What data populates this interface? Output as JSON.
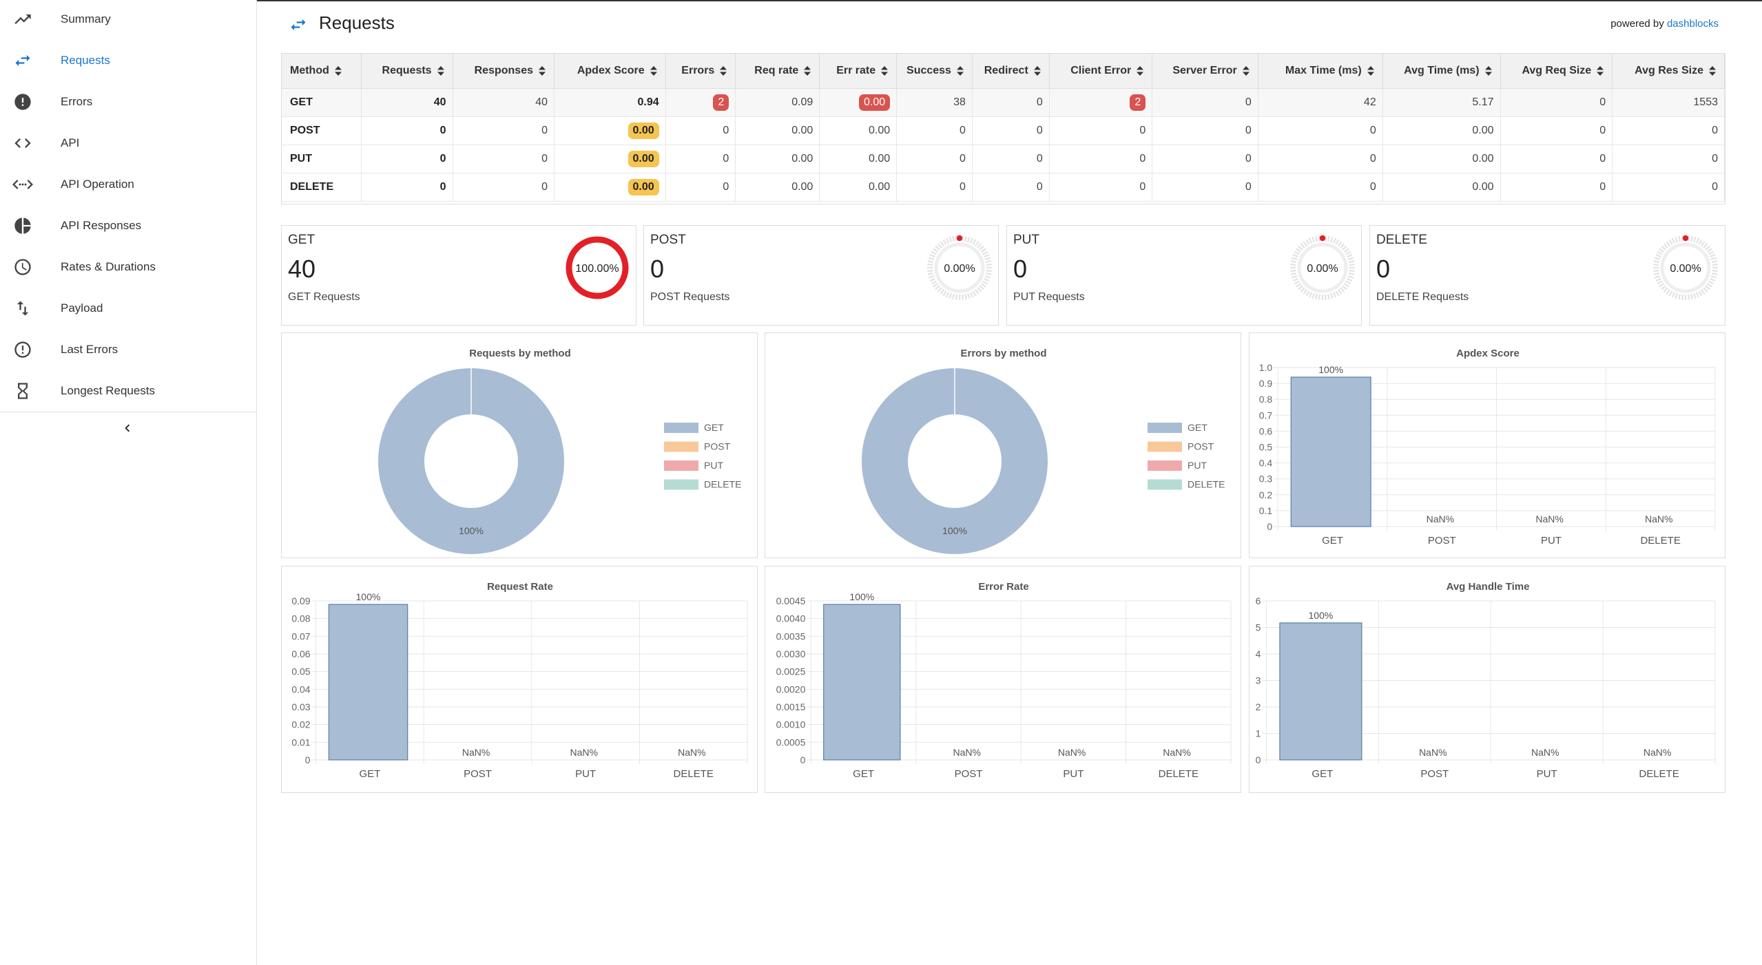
{
  "sidebar": {
    "items": [
      {
        "label": "Summary",
        "icon": "trending-up-icon"
      },
      {
        "label": "Requests",
        "icon": "swap-arrows-icon",
        "active": true
      },
      {
        "label": "Errors",
        "icon": "error-filled-icon"
      },
      {
        "label": "API",
        "icon": "code-icon"
      },
      {
        "label": "API Operation",
        "icon": "code-dots-icon"
      },
      {
        "label": "API Responses",
        "icon": "pie-chart-icon"
      },
      {
        "label": "Rates & Durations",
        "icon": "clock-icon"
      },
      {
        "label": "Payload",
        "icon": "swap-vertical-icon"
      },
      {
        "label": "Last Errors",
        "icon": "error-outline-icon"
      },
      {
        "label": "Longest Requests",
        "icon": "hourglass-icon"
      }
    ]
  },
  "header": {
    "title": "Requests",
    "powered_by": "powered by",
    "brand": "dashblocks",
    "accent": "#1976d2"
  },
  "table": {
    "columns": [
      "Method",
      "Requests",
      "Responses",
      "Apdex Score",
      "Errors",
      "Req rate",
      "Err rate",
      "Success",
      "Redirect",
      "Client Error",
      "Server Error",
      "Max Time (ms)",
      "Avg Time (ms)",
      "Avg Req Size",
      "Avg Res Size"
    ],
    "rows": [
      [
        "GET",
        "40",
        "40",
        "0.94",
        "2",
        "0.09",
        "0.00",
        "38",
        "0",
        "2",
        "0",
        "42",
        "5.17",
        "0",
        "1553"
      ],
      [
        "POST",
        "0",
        "0",
        "0.00",
        "0",
        "0.00",
        "0.00",
        "0",
        "0",
        "0",
        "0",
        "0",
        "0.00",
        "0",
        "0"
      ],
      [
        "PUT",
        "0",
        "0",
        "0.00",
        "0",
        "0.00",
        "0.00",
        "0",
        "0",
        "0",
        "0",
        "0",
        "0.00",
        "0",
        "0"
      ],
      [
        "DELETE",
        "0",
        "0",
        "0.00",
        "0",
        "0.00",
        "0.00",
        "0",
        "0",
        "0",
        "0",
        "0",
        "0.00",
        "0",
        "0"
      ]
    ]
  },
  "cards": [
    {
      "name": "GET",
      "value": "40",
      "sub": "GET Requests",
      "percent": "100.00%",
      "fraction": 1.0
    },
    {
      "name": "POST",
      "value": "0",
      "sub": "POST Requests",
      "percent": "0.00%",
      "fraction": 0.0
    },
    {
      "name": "PUT",
      "value": "0",
      "sub": "PUT Requests",
      "percent": "0.00%",
      "fraction": 0.0
    },
    {
      "name": "DELETE",
      "value": "0",
      "sub": "DELETE Requests",
      "percent": "0.00%",
      "fraction": 0.0
    }
  ],
  "colors": {
    "GET": "#a8bcd4",
    "POST": "#f8c89a",
    "PUT": "#f0a9ab",
    "DELETE": "#b5dbd3",
    "gauge_red": "#e32027",
    "bar_stroke": "#5a7eaa"
  },
  "chart_data": [
    {
      "type": "pie",
      "title": "Requests by method",
      "categories": [
        "GET",
        "POST",
        "PUT",
        "DELETE"
      ],
      "values": [
        40,
        0,
        0,
        0
      ],
      "slice_labels": [
        "100%",
        "",
        "",
        ""
      ],
      "legend": "right"
    },
    {
      "type": "pie",
      "title": "Errors by method",
      "categories": [
        "GET",
        "POST",
        "PUT",
        "DELETE"
      ],
      "values": [
        2,
        0,
        0,
        0
      ],
      "slice_labels": [
        "100%",
        "",
        "",
        ""
      ],
      "legend": "right"
    },
    {
      "type": "bar",
      "title": "Apdex Score",
      "categories": [
        "GET",
        "POST",
        "PUT",
        "DELETE"
      ],
      "values": [
        0.94,
        0,
        0,
        0
      ],
      "bar_labels": [
        "100%",
        "NaN%",
        "NaN%",
        "NaN%"
      ],
      "ylim": [
        0,
        1.0
      ],
      "yticks": [
        "0",
        "0.1",
        "0.2",
        "0.3",
        "0.4",
        "0.5",
        "0.6",
        "0.7",
        "0.8",
        "0.9",
        "1.0"
      ],
      "grid": true
    },
    {
      "type": "bar",
      "title": "Request Rate",
      "categories": [
        "GET",
        "POST",
        "PUT",
        "DELETE"
      ],
      "values": [
        0.088,
        0,
        0,
        0
      ],
      "bar_labels": [
        "100%",
        "NaN%",
        "NaN%",
        "NaN%"
      ],
      "ylim": [
        0,
        0.09
      ],
      "yticks": [
        "0",
        "0.01",
        "0.02",
        "0.03",
        "0.04",
        "0.05",
        "0.06",
        "0.07",
        "0.08",
        "0.09"
      ],
      "grid": true
    },
    {
      "type": "bar",
      "title": "Error Rate",
      "categories": [
        "GET",
        "POST",
        "PUT",
        "DELETE"
      ],
      "values": [
        0.0044,
        0,
        0,
        0
      ],
      "bar_labels": [
        "100%",
        "NaN%",
        "NaN%",
        "NaN%"
      ],
      "ylim": [
        0,
        0.0045
      ],
      "yticks": [
        "0",
        "0.0005",
        "0.0010",
        "0.0015",
        "0.0020",
        "0.0025",
        "0.0030",
        "0.0035",
        "0.0040",
        "0.0045"
      ],
      "grid": true
    },
    {
      "type": "bar",
      "title": "Avg Handle Time",
      "categories": [
        "GET",
        "POST",
        "PUT",
        "DELETE"
      ],
      "values": [
        5.17,
        0,
        0,
        0
      ],
      "bar_labels": [
        "100%",
        "NaN%",
        "NaN%",
        "NaN%"
      ],
      "ylim": [
        0,
        6
      ],
      "yticks": [
        "0",
        "1",
        "2",
        "3",
        "4",
        "5",
        "6"
      ],
      "grid": true
    }
  ]
}
